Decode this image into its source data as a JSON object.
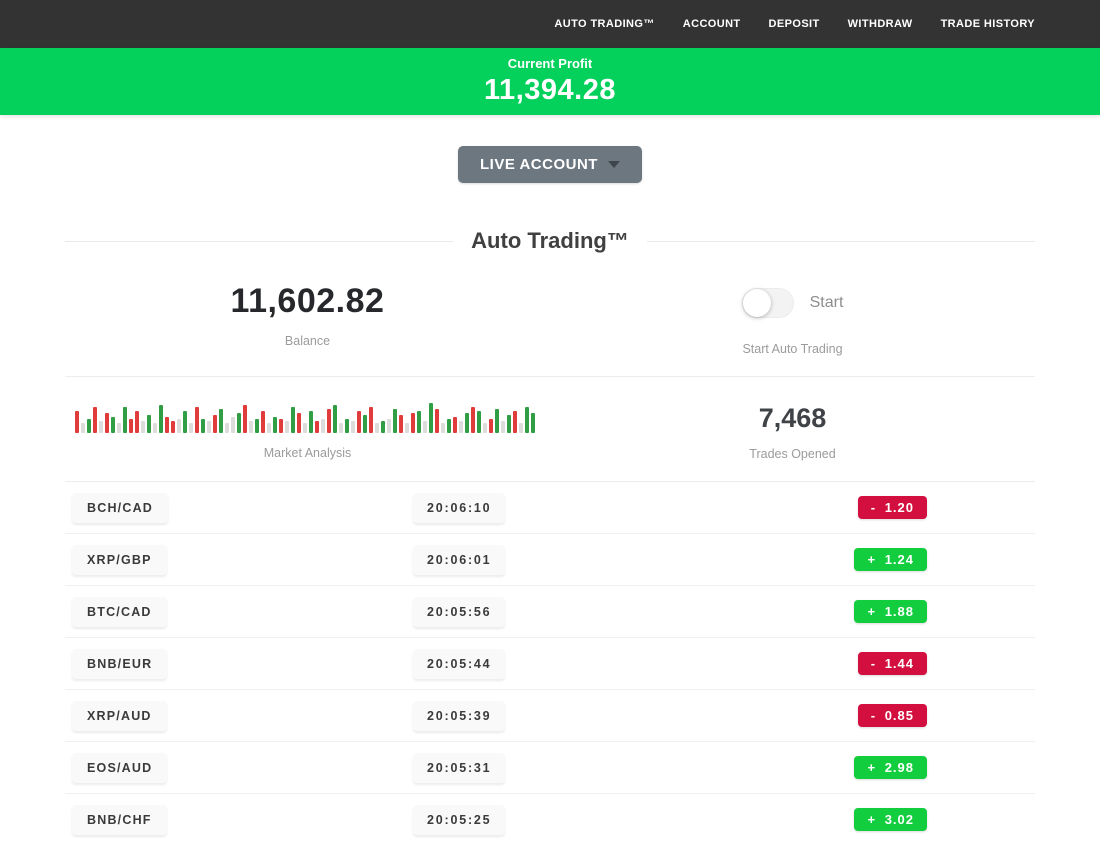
{
  "colors": {
    "nav_bg": "#333333",
    "banner_green": "#04d05c",
    "badge_green": "#12cd3e",
    "badge_red": "#d30f3f"
  },
  "nav": {
    "items": [
      {
        "label": "AUTO TRADING™"
      },
      {
        "label": "ACCOUNT"
      },
      {
        "label": "DEPOSIT"
      },
      {
        "label": "WITHDRAW"
      },
      {
        "label": "TRADE HISTORY"
      }
    ]
  },
  "profit_banner": {
    "label": "Current Profit",
    "value": "11,394.28"
  },
  "account_selector": {
    "label": "LIVE ACCOUNT"
  },
  "section": {
    "title": "Auto Trading™"
  },
  "stats": {
    "balance": {
      "value": "11,602.82",
      "label": "Balance"
    },
    "auto_trading": {
      "toggle_label": "Start",
      "label": "Start Auto Trading",
      "toggle_state": "off"
    },
    "market_analysis": {
      "label": "Market Analysis"
    },
    "trades_opened": {
      "value": "7,468",
      "label": "Trades Opened"
    }
  },
  "trades": [
    {
      "pair": "BCH/CAD",
      "time": "20:06:10",
      "result": "- 1.20",
      "direction": "loss"
    },
    {
      "pair": "XRP/GBP",
      "time": "20:06:01",
      "result": "+ 1.24",
      "direction": "win"
    },
    {
      "pair": "BTC/CAD",
      "time": "20:05:56",
      "result": "+ 1.88",
      "direction": "win"
    },
    {
      "pair": "BNB/EUR",
      "time": "20:05:44",
      "result": "- 1.44",
      "direction": "loss"
    },
    {
      "pair": "XRP/AUD",
      "time": "20:05:39",
      "result": "- 0.85",
      "direction": "loss"
    },
    {
      "pair": "EOS/AUD",
      "time": "20:05:31",
      "result": "+ 2.98",
      "direction": "win"
    },
    {
      "pair": "BNB/CHF",
      "time": "20:05:25",
      "result": "+ 3.02",
      "direction": "win"
    }
  ],
  "chart_data": {
    "type": "bar",
    "title": "Market Analysis",
    "note": "decorative mini candlestick strip; heights in px, colors r=red g=green n=neutral-gray",
    "legend": {
      "r": "#e03c3c",
      "g": "#2f9e44",
      "n": "#dcdcdc"
    },
    "bars": [
      "r22",
      "n10",
      "g14",
      "r26",
      "n12",
      "r20",
      "g16",
      "n10",
      "g26",
      "r14",
      "r22",
      "n12",
      "g18",
      "n10",
      "g28",
      "r16",
      "r12",
      "n14",
      "g22",
      "n10",
      "r26",
      "g14",
      "n12",
      "r18",
      "g24",
      "n10",
      "n16",
      "g20",
      "r28",
      "n12",
      "g14",
      "r22",
      "n10",
      "g16",
      "r14",
      "n12",
      "g26",
      "r20",
      "n10",
      "g22",
      "r12",
      "n14",
      "r24",
      "g28",
      "n10",
      "g14",
      "n12",
      "r22",
      "g18",
      "r26",
      "n10",
      "g12",
      "n14",
      "g24",
      "r18",
      "n10",
      "r20",
      "g22",
      "n12",
      "g30",
      "r24",
      "n10",
      "g14",
      "r16",
      "n12",
      "g20",
      "r26",
      "g22",
      "n10",
      "r14",
      "g24",
      "n12",
      "g18",
      "r22",
      "n10",
      "g26",
      "g20"
    ]
  }
}
